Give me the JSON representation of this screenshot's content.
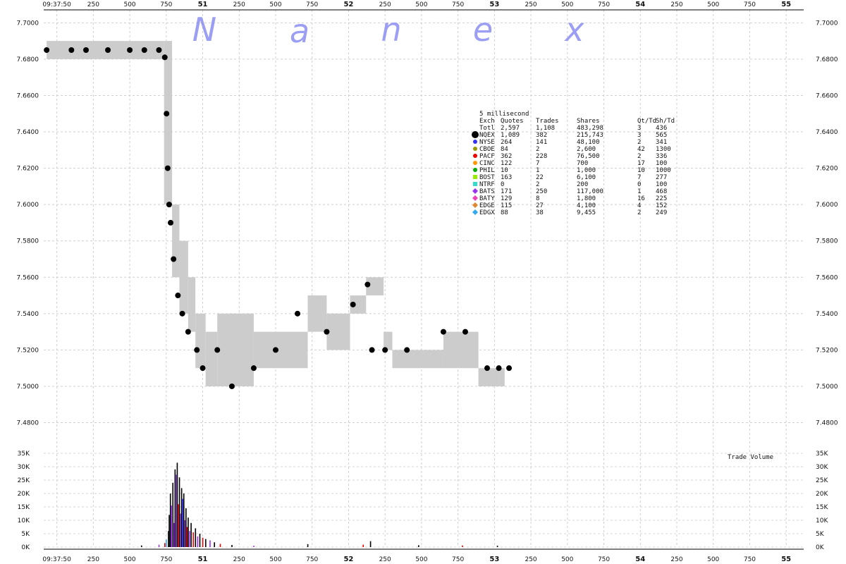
{
  "chart_data": {
    "type": "scatter",
    "watermark": [
      "N",
      "a",
      "n",
      "e",
      "x"
    ],
    "x_tick_labels": [
      {
        "t": 0,
        "label": "09:37:50",
        "major": false
      },
      {
        "t": 250,
        "label": "250",
        "major": false
      },
      {
        "t": 500,
        "label": "500",
        "major": false
      },
      {
        "t": 750,
        "label": "750",
        "major": false
      },
      {
        "t": 1000,
        "label": "51",
        "major": true
      },
      {
        "t": 1250,
        "label": "250",
        "major": false
      },
      {
        "t": 1500,
        "label": "500",
        "major": false
      },
      {
        "t": 1750,
        "label": "750",
        "major": false
      },
      {
        "t": 2000,
        "label": "52",
        "major": true
      },
      {
        "t": 2250,
        "label": "250",
        "major": false
      },
      {
        "t": 2500,
        "label": "500",
        "major": false
      },
      {
        "t": 2750,
        "label": "750",
        "major": false
      },
      {
        "t": 3000,
        "label": "53",
        "major": true
      },
      {
        "t": 3250,
        "label": "250",
        "major": false
      },
      {
        "t": 3500,
        "label": "500",
        "major": false
      },
      {
        "t": 3750,
        "label": "750",
        "major": false
      },
      {
        "t": 4000,
        "label": "54",
        "major": true
      },
      {
        "t": 4250,
        "label": "250",
        "major": false
      },
      {
        "t": 4500,
        "label": "500",
        "major": false
      },
      {
        "t": 4750,
        "label": "750",
        "major": false
      },
      {
        "t": 5000,
        "label": "55",
        "major": true
      }
    ],
    "price_ticks": [
      "7.7000",
      "7.6800",
      "7.6600",
      "7.6400",
      "7.6200",
      "7.6000",
      "7.5800",
      "7.5600",
      "7.5400",
      "7.5200",
      "7.5000",
      "7.4800"
    ],
    "price_tick_values": [
      7.7,
      7.68,
      7.66,
      7.64,
      7.62,
      7.6,
      7.58,
      7.56,
      7.54,
      7.52,
      7.5,
      7.48
    ],
    "price_ylim": [
      7.474,
      7.704
    ],
    "volume_ticks": [
      "35K",
      "30K",
      "25K",
      "20K",
      "15K",
      "10K",
      "5K",
      "0K"
    ],
    "volume_tick_values": [
      35000,
      30000,
      25000,
      20000,
      15000,
      10000,
      5000,
      0
    ],
    "volume_ylim": [
      0,
      35000
    ],
    "volume_title": "Trade Volume",
    "legend": {
      "interval": "5 millisecond",
      "headers": [
        "Exch",
        "Quotes",
        "Trades",
        "Shares",
        "Qt/Td",
        "Sh/Td"
      ],
      "total": {
        "exch": "Totl",
        "quotes": "2,597",
        "trades": "1,108",
        "shares": "483,298",
        "qt_td": "3",
        "sh_td": "436"
      },
      "rows": [
        {
          "exch": "NQEX",
          "quotes": "1,089",
          "trades": "382",
          "shares": "215,743",
          "qt_td": "3",
          "sh_td": "565",
          "color": "#000000",
          "shape": "circle-big"
        },
        {
          "exch": "NYSE",
          "quotes": "264",
          "trades": "141",
          "shares": "48,100",
          "qt_td": "2",
          "sh_td": "341",
          "color": "#3333ff",
          "shape": "circle"
        },
        {
          "exch": "CBOE",
          "quotes": "84",
          "trades": "2",
          "shares": "2,600",
          "qt_td": "42",
          "sh_td": "1300",
          "color": "#999900",
          "shape": "circle"
        },
        {
          "exch": "PACF",
          "quotes": "362",
          "trades": "228",
          "shares": "76,500",
          "qt_td": "2",
          "sh_td": "336",
          "color": "#ee0000",
          "shape": "circle"
        },
        {
          "exch": "CINC",
          "quotes": "122",
          "trades": "7",
          "shares": "700",
          "qt_td": "17",
          "sh_td": "100",
          "color": "#ff9900",
          "shape": "circle"
        },
        {
          "exch": "PHIL",
          "quotes": "10",
          "trades": "1",
          "shares": "1,000",
          "qt_td": "10",
          "sh_td": "1000",
          "color": "#00aa00",
          "shape": "circle"
        },
        {
          "exch": "BOST",
          "quotes": "163",
          "trades": "22",
          "shares": "6,100",
          "qt_td": "7",
          "sh_td": "277",
          "color": "#99ee00",
          "shape": "square"
        },
        {
          "exch": "NTRF",
          "quotes": "0",
          "trades": "2",
          "shares": "200",
          "qt_td": "0",
          "sh_td": "100",
          "color": "#33ddcc",
          "shape": "square"
        },
        {
          "exch": "BATS",
          "quotes": "171",
          "trades": "250",
          "shares": "117,000",
          "qt_td": "1",
          "sh_td": "468",
          "color": "#9933ee",
          "shape": "diamond"
        },
        {
          "exch": "BATY",
          "quotes": "129",
          "trades": "8",
          "shares": "1,800",
          "qt_td": "16",
          "sh_td": "225",
          "color": "#ee44bb",
          "shape": "diamond"
        },
        {
          "exch": "EDGE",
          "quotes": "115",
          "trades": "27",
          "shares": "4,100",
          "qt_td": "4",
          "sh_td": "152",
          "color": "#dd8833",
          "shape": "diamond"
        },
        {
          "exch": "EDGX",
          "quotes": "88",
          "trades": "38",
          "shares": "9,455",
          "qt_td": "2",
          "sh_td": "249",
          "color": "#33aaee",
          "shape": "diamond"
        }
      ]
    },
    "nbbo_bands": [
      {
        "t0": -70,
        "t1": 735,
        "bid": 7.68,
        "ask": 7.69
      },
      {
        "t0": 735,
        "t1": 790,
        "bid": 7.6,
        "ask": 7.69
      },
      {
        "t0": 790,
        "t1": 840,
        "bid": 7.56,
        "ask": 7.6
      },
      {
        "t0": 840,
        "t1": 900,
        "bid": 7.54,
        "ask": 7.58
      },
      {
        "t0": 900,
        "t1": 950,
        "bid": 7.53,
        "ask": 7.56
      },
      {
        "t0": 950,
        "t1": 1020,
        "bid": 7.51,
        "ask": 7.54
      },
      {
        "t0": 1020,
        "t1": 1100,
        "bid": 7.5,
        "ask": 7.53
      },
      {
        "t0": 1100,
        "t1": 1350,
        "bid": 7.5,
        "ask": 7.54
      },
      {
        "t0": 1350,
        "t1": 1430,
        "bid": 7.51,
        "ask": 7.53
      },
      {
        "t0": 1430,
        "t1": 1720,
        "bid": 7.51,
        "ask": 7.53
      },
      {
        "t0": 1720,
        "t1": 1850,
        "bid": 7.53,
        "ask": 7.55
      },
      {
        "t0": 1850,
        "t1": 2010,
        "bid": 7.52,
        "ask": 7.54
      },
      {
        "t0": 2010,
        "t1": 2120,
        "bid": 7.54,
        "ask": 7.55
      },
      {
        "t0": 2120,
        "t1": 2240,
        "bid": 7.55,
        "ask": 7.56
      },
      {
        "t0": 2240,
        "t1": 2300,
        "bid": 7.52,
        "ask": 7.53
      },
      {
        "t0": 2300,
        "t1": 2650,
        "bid": 7.51,
        "ask": 7.52
      },
      {
        "t0": 2650,
        "t1": 2890,
        "bid": 7.51,
        "ask": 7.53
      },
      {
        "t0": 2890,
        "t1": 3030,
        "bid": 7.5,
        "ask": 7.51
      },
      {
        "t0": 3030,
        "t1": 3070,
        "bid": 7.5,
        "ask": 7.51
      }
    ],
    "trade_price_samples": [
      {
        "t": -70,
        "p": 7.685
      },
      {
        "t": 100,
        "p": 7.685
      },
      {
        "t": 200,
        "p": 7.685
      },
      {
        "t": 350,
        "p": 7.685
      },
      {
        "t": 500,
        "p": 7.685
      },
      {
        "t": 600,
        "p": 7.685
      },
      {
        "t": 700,
        "p": 7.685
      },
      {
        "t": 740,
        "p": 7.681
      },
      {
        "t": 752,
        "p": 7.65
      },
      {
        "t": 760,
        "p": 7.62
      },
      {
        "t": 770,
        "p": 7.6
      },
      {
        "t": 780,
        "p": 7.59
      },
      {
        "t": 800,
        "p": 7.57
      },
      {
        "t": 830,
        "p": 7.55
      },
      {
        "t": 860,
        "p": 7.54
      },
      {
        "t": 900,
        "p": 7.53
      },
      {
        "t": 960,
        "p": 7.52
      },
      {
        "t": 1000,
        "p": 7.51
      },
      {
        "t": 1100,
        "p": 7.52
      },
      {
        "t": 1200,
        "p": 7.5
      },
      {
        "t": 1350,
        "p": 7.51
      },
      {
        "t": 1500,
        "p": 7.52
      },
      {
        "t": 1650,
        "p": 7.54
      },
      {
        "t": 1850,
        "p": 7.53
      },
      {
        "t": 2030,
        "p": 7.545
      },
      {
        "t": 2130,
        "p": 7.556
      },
      {
        "t": 2160,
        "p": 7.52
      },
      {
        "t": 2250,
        "p": 7.52
      },
      {
        "t": 2400,
        "p": 7.52
      },
      {
        "t": 2650,
        "p": 7.53
      },
      {
        "t": 2800,
        "p": 7.53
      },
      {
        "t": 2950,
        "p": 7.51
      },
      {
        "t": 3030,
        "p": 7.51
      },
      {
        "t": 3100,
        "p": 7.51
      }
    ],
    "volume_samples": [
      {
        "t": 580,
        "v": 600,
        "ex": "NQEX"
      },
      {
        "t": 700,
        "v": 900,
        "ex": "BATS"
      },
      {
        "t": 740,
        "v": 1500,
        "ex": "PACF"
      },
      {
        "t": 750,
        "v": 2800,
        "ex": "EDGX"
      },
      {
        "t": 765,
        "v": 6000,
        "ex": "NQEX"
      },
      {
        "t": 770,
        "v": 12000,
        "ex": "NQEX"
      },
      {
        "t": 778,
        "v": 20000,
        "ex": "NQEX"
      },
      {
        "t": 785,
        "v": 15500,
        "ex": "BATS"
      },
      {
        "t": 795,
        "v": 24000,
        "ex": "NQEX"
      },
      {
        "t": 803,
        "v": 9000,
        "ex": "BATS"
      },
      {
        "t": 810,
        "v": 29000,
        "ex": "NQEX"
      },
      {
        "t": 818,
        "v": 27000,
        "ex": "BATS"
      },
      {
        "t": 825,
        "v": 31500,
        "ex": "NQEX"
      },
      {
        "t": 833,
        "v": 16000,
        "ex": "PACF"
      },
      {
        "t": 840,
        "v": 26000,
        "ex": "NQEX"
      },
      {
        "t": 848,
        "v": 12500,
        "ex": "BATS"
      },
      {
        "t": 855,
        "v": 22000,
        "ex": "NQEX"
      },
      {
        "t": 862,
        "v": 18000,
        "ex": "NYSE"
      },
      {
        "t": 870,
        "v": 20000,
        "ex": "NQEX"
      },
      {
        "t": 878,
        "v": 10000,
        "ex": "BATS"
      },
      {
        "t": 885,
        "v": 14500,
        "ex": "NQEX"
      },
      {
        "t": 893,
        "v": 7500,
        "ex": "PACF"
      },
      {
        "t": 900,
        "v": 11000,
        "ex": "NQEX"
      },
      {
        "t": 910,
        "v": 6000,
        "ex": "BATS"
      },
      {
        "t": 920,
        "v": 9000,
        "ex": "NQEX"
      },
      {
        "t": 935,
        "v": 5500,
        "ex": "PACF"
      },
      {
        "t": 950,
        "v": 7000,
        "ex": "NQEX"
      },
      {
        "t": 965,
        "v": 4000,
        "ex": "BATS"
      },
      {
        "t": 980,
        "v": 5000,
        "ex": "NQEX"
      },
      {
        "t": 1000,
        "v": 3500,
        "ex": "PACF"
      },
      {
        "t": 1020,
        "v": 3000,
        "ex": "NQEX"
      },
      {
        "t": 1050,
        "v": 2500,
        "ex": "BATS"
      },
      {
        "t": 1080,
        "v": 1800,
        "ex": "NQEX"
      },
      {
        "t": 1120,
        "v": 1200,
        "ex": "PACF"
      },
      {
        "t": 1200,
        "v": 800,
        "ex": "NQEX"
      },
      {
        "t": 1350,
        "v": 500,
        "ex": "BATS"
      },
      {
        "t": 1720,
        "v": 1100,
        "ex": "NQEX"
      },
      {
        "t": 2100,
        "v": 900,
        "ex": "PACF"
      },
      {
        "t": 2150,
        "v": 2200,
        "ex": "NQEX"
      },
      {
        "t": 2480,
        "v": 700,
        "ex": "NQEX"
      },
      {
        "t": 2780,
        "v": 600,
        "ex": "PACF"
      },
      {
        "t": 3020,
        "v": 500,
        "ex": "NQEX"
      }
    ]
  }
}
